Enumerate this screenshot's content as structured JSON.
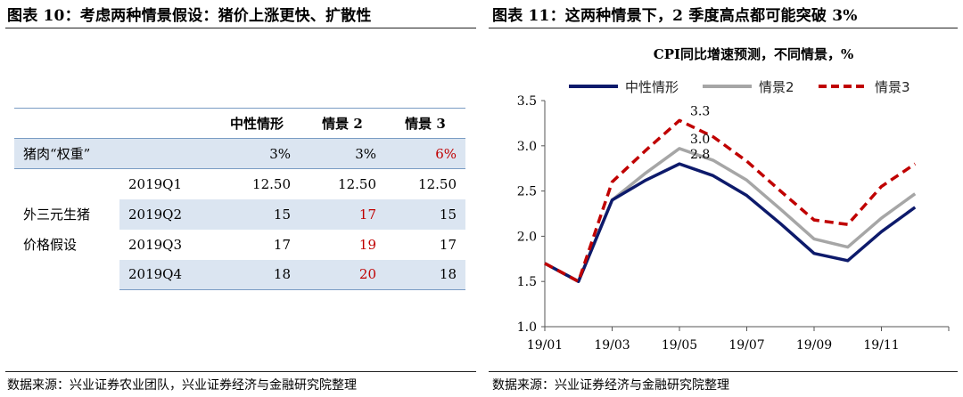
{
  "left": {
    "figure_title": "图表 10：考虑两种情景假设：猪价上涨更快、扩散性",
    "table": {
      "headers": [
        "",
        "",
        "中性情形",
        "情景 2",
        "情景 3"
      ],
      "pork_weight": {
        "label": "猪肉“权重”",
        "values": [
          "3%",
          "3%",
          "6%"
        ]
      },
      "group_label_line1": "外三元生猪",
      "group_label_line2": "价格假设",
      "rows": [
        {
          "quarter": "2019Q1",
          "values": [
            "12.50",
            "12.50",
            "12.50"
          ]
        },
        {
          "quarter": "2019Q2",
          "values": [
            "15",
            "17",
            "15"
          ]
        },
        {
          "quarter": "2019Q3",
          "values": [
            "17",
            "19",
            "17"
          ]
        },
        {
          "quarter": "2019Q4",
          "values": [
            "18",
            "20",
            "18"
          ]
        }
      ],
      "highlight_color": "#c00000"
    },
    "source": "数据来源：兴业证券农业团队，兴业证券经济与金融研究院整理"
  },
  "right": {
    "figure_title": "图表 11：这两种情景下，2 季度高点都可能突破 3%",
    "source": "数据来源：兴业证券经济与金融研究院整理"
  },
  "chart_data": {
    "type": "line",
    "title": "CPI同比增速预测，不同情景，%",
    "x": [
      "19/01",
      "19/02",
      "19/03",
      "19/04",
      "19/05",
      "19/06",
      "19/07",
      "19/08",
      "19/09",
      "19/10",
      "19/11",
      "19/12"
    ],
    "x_tick_labels": [
      "19/01",
      "19/03",
      "19/05",
      "19/07",
      "19/09",
      "19/11"
    ],
    "ylim": [
      1.0,
      3.5
    ],
    "y_ticks": [
      "1.0",
      "1.5",
      "2.0",
      "2.5",
      "3.0",
      "3.5"
    ],
    "legend_position": "top",
    "grid": false,
    "series": [
      {
        "name": "中性情形",
        "color": "#0d1a6b",
        "style": "solid",
        "values": [
          1.7,
          1.5,
          2.4,
          2.62,
          2.8,
          2.67,
          2.45,
          2.14,
          1.81,
          1.73,
          2.05,
          2.32
        ]
      },
      {
        "name": "情景2",
        "color": "#a6a6a6",
        "style": "solid",
        "values": [
          1.7,
          1.5,
          2.4,
          2.7,
          2.97,
          2.84,
          2.62,
          2.3,
          1.97,
          1.88,
          2.2,
          2.47
        ]
      },
      {
        "name": "情景3",
        "color": "#c00000",
        "style": "dashed",
        "values": [
          1.7,
          1.5,
          2.6,
          2.95,
          3.28,
          3.1,
          2.83,
          2.5,
          2.18,
          2.13,
          2.55,
          2.8
        ]
      }
    ],
    "annotations": [
      {
        "text": "3.3",
        "series": 2,
        "index": 4
      },
      {
        "text": "3.0",
        "series": 1,
        "index": 4
      },
      {
        "text": "2.8",
        "series": 0,
        "index": 4
      }
    ]
  }
}
